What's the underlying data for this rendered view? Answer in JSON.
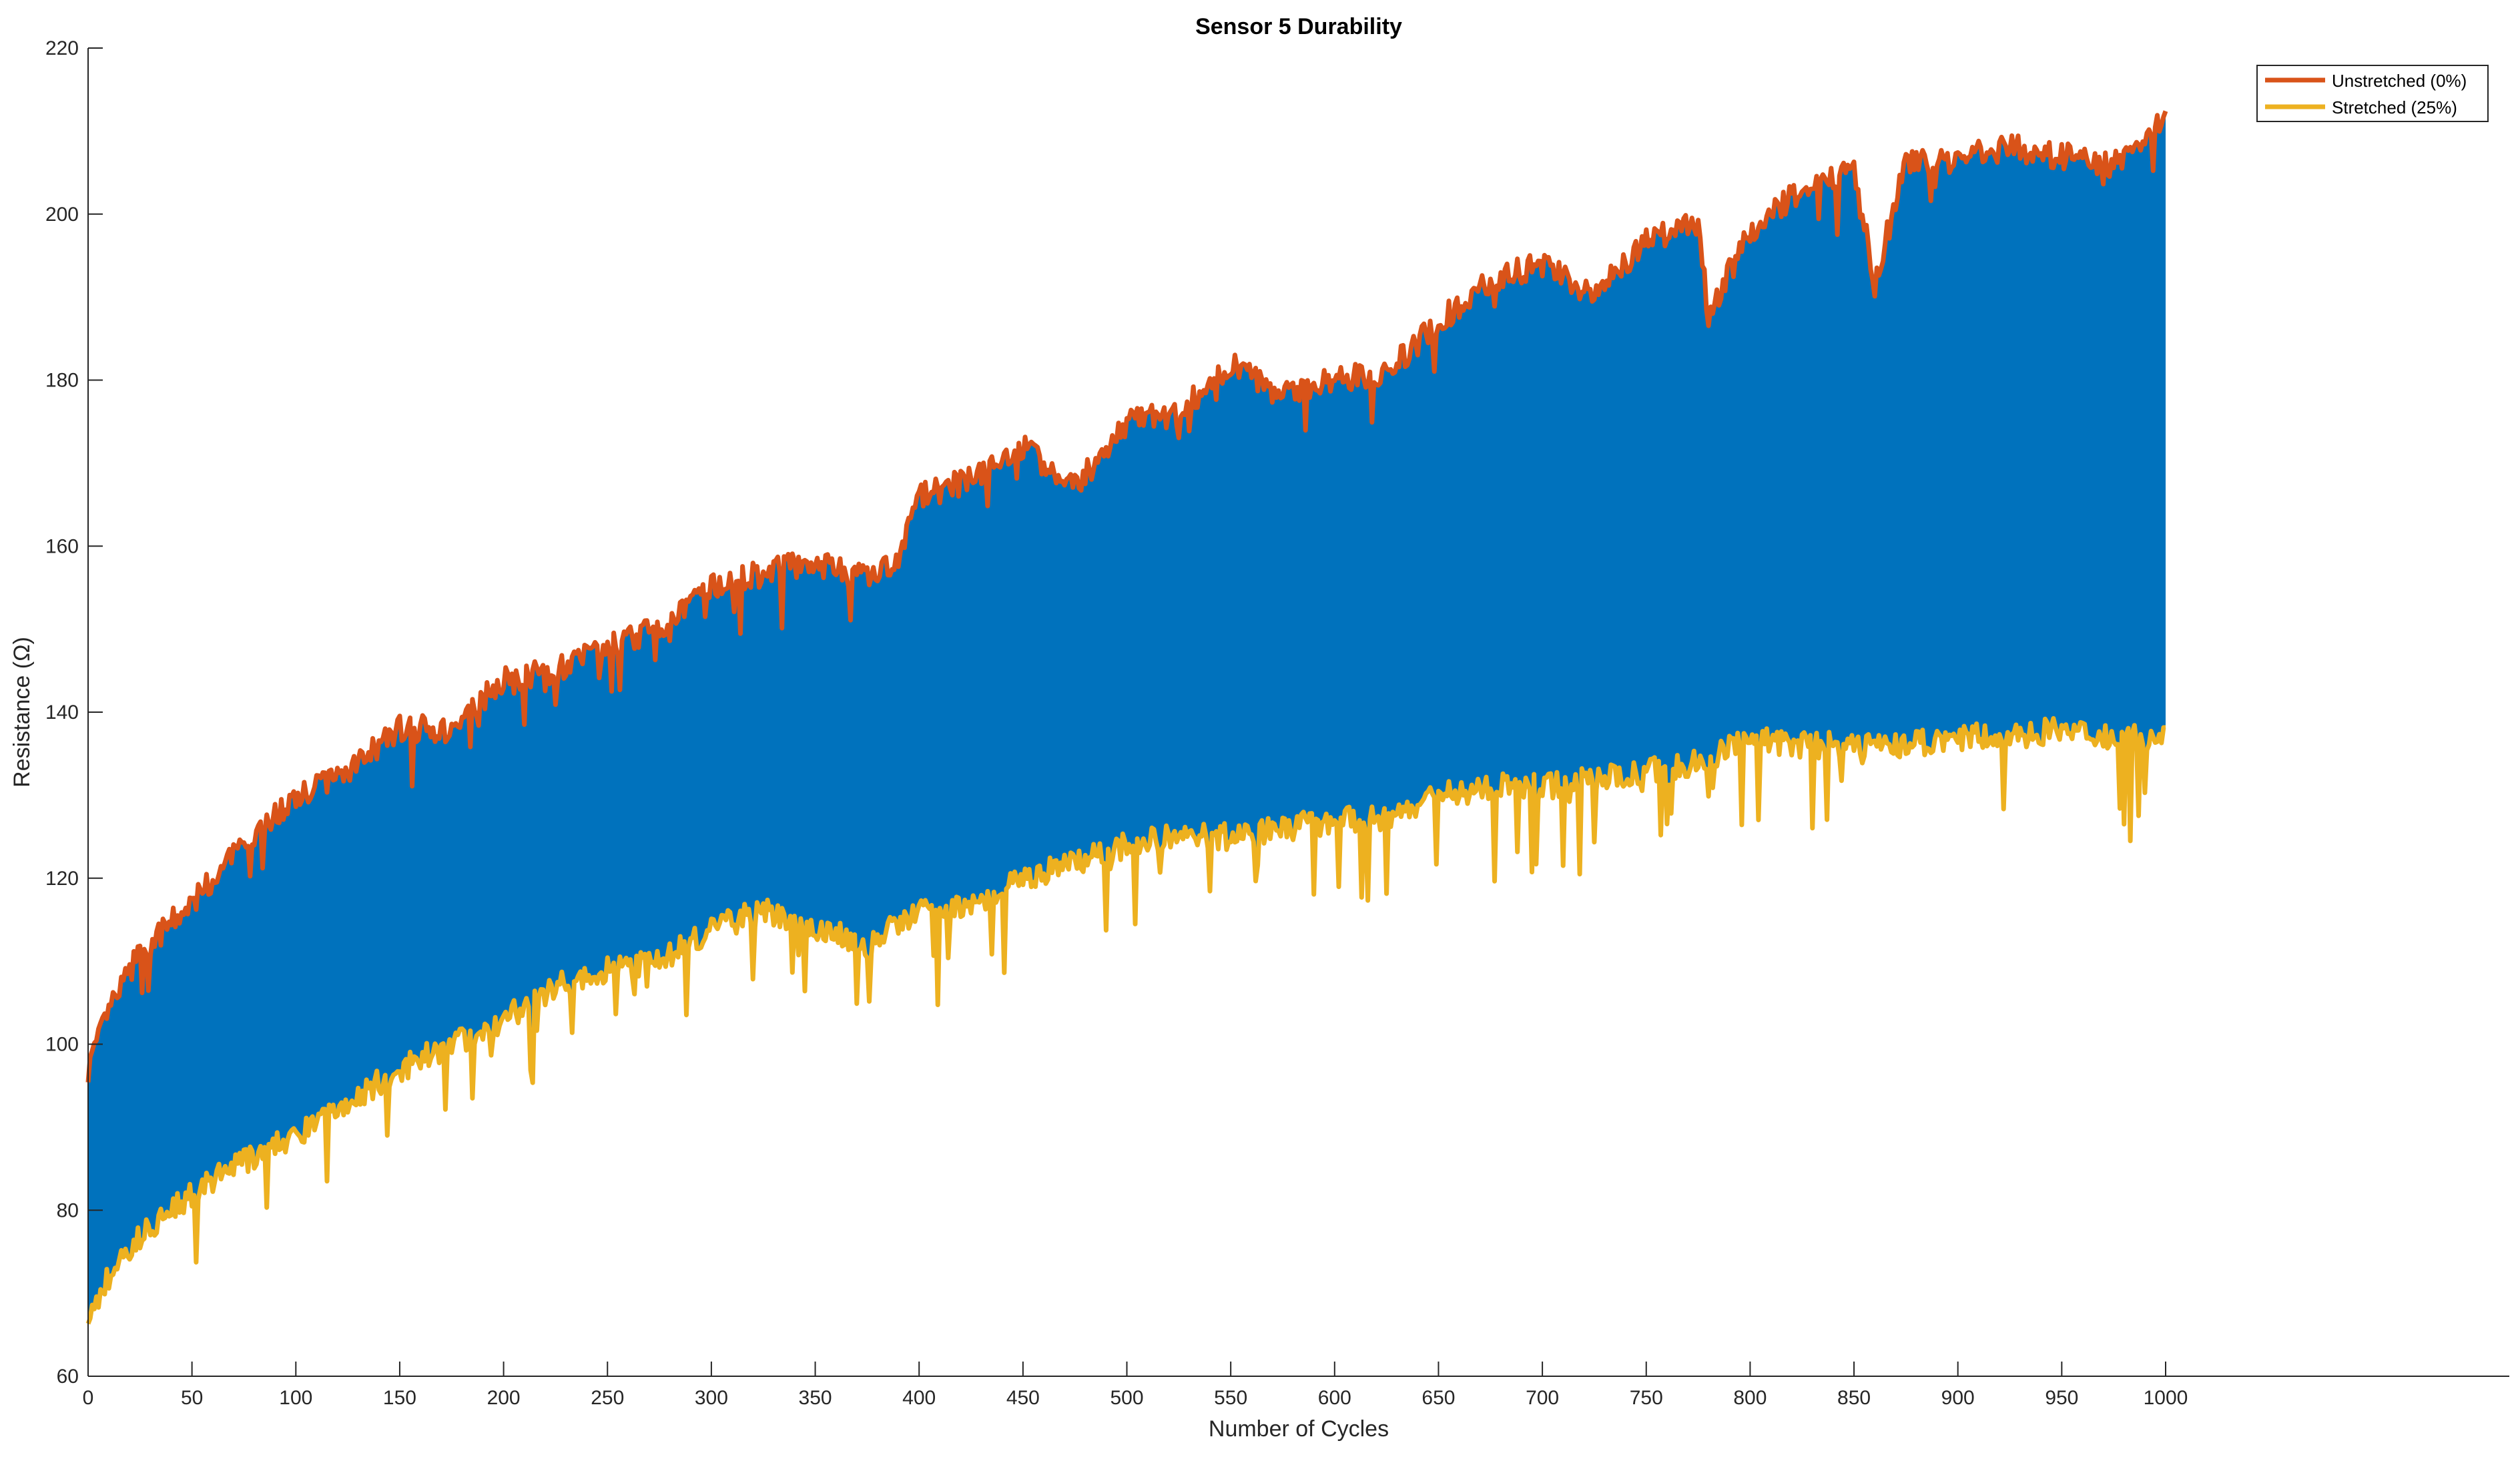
{
  "chart_data": {
    "type": "line",
    "title": "Sensor 5 Durability",
    "xlabel": "Number of Cycles",
    "ylabel": "Resistance (Ω)",
    "xlim": [
      0,
      1000
    ],
    "ylim": [
      60,
      220
    ],
    "x_data_max": 1000,
    "xticks": [
      0,
      50,
      100,
      150,
      200,
      250,
      300,
      350,
      400,
      450,
      500,
      550,
      600,
      650,
      700,
      750,
      800,
      850,
      900,
      950,
      1000
    ],
    "yticks": [
      60,
      80,
      100,
      120,
      140,
      160,
      180,
      200,
      220
    ],
    "grid": false,
    "legend_position": "top-right",
    "band": {
      "color": "#0072BD"
    },
    "series": [
      {
        "name": "Unstretched (0%)",
        "color": "#D95319",
        "x": [
          0,
          10,
          25,
          50,
          75,
          100,
          125,
          150,
          175,
          200,
          225,
          250,
          275,
          300,
          325,
          350,
          375,
          390,
          400,
          425,
          450,
          475,
          500,
          525,
          550,
          575,
          600,
          625,
          650,
          675,
          700,
          725,
          750,
          775,
          780,
          800,
          825,
          850,
          860,
          875,
          900,
          925,
          950,
          975,
          1000
        ],
        "values": [
          97,
          104,
          111,
          117,
          124,
          130,
          133,
          138,
          138,
          144,
          145,
          148,
          150,
          155,
          157,
          158,
          156,
          158,
          166,
          168,
          172,
          167,
          175,
          176,
          182,
          178,
          180,
          181,
          187,
          192,
          194,
          190,
          197,
          199,
          188,
          198,
          203,
          205,
          192,
          206,
          207,
          208,
          207,
          206,
          212
        ]
      },
      {
        "name": "Stretched (25%)",
        "color": "#EDB120",
        "x": [
          0,
          10,
          25,
          50,
          75,
          100,
          125,
          150,
          175,
          200,
          225,
          250,
          275,
          300,
          325,
          350,
          375,
          400,
          425,
          450,
          475,
          500,
          525,
          550,
          575,
          600,
          625,
          650,
          675,
          700,
          725,
          750,
          775,
          800,
          825,
          850,
          875,
          900,
          925,
          950,
          975,
          1000
        ],
        "values": [
          67,
          72,
          77,
          82,
          86,
          89,
          93,
          97,
          100,
          103,
          107,
          109,
          110,
          114,
          116,
          114,
          112,
          116,
          117,
          120,
          122,
          124,
          125,
          125,
          126,
          127,
          127,
          130,
          131,
          131,
          132,
          133,
          134,
          137,
          136,
          136,
          136,
          137,
          137,
          138,
          137,
          137
        ]
      }
    ],
    "annotations": []
  }
}
